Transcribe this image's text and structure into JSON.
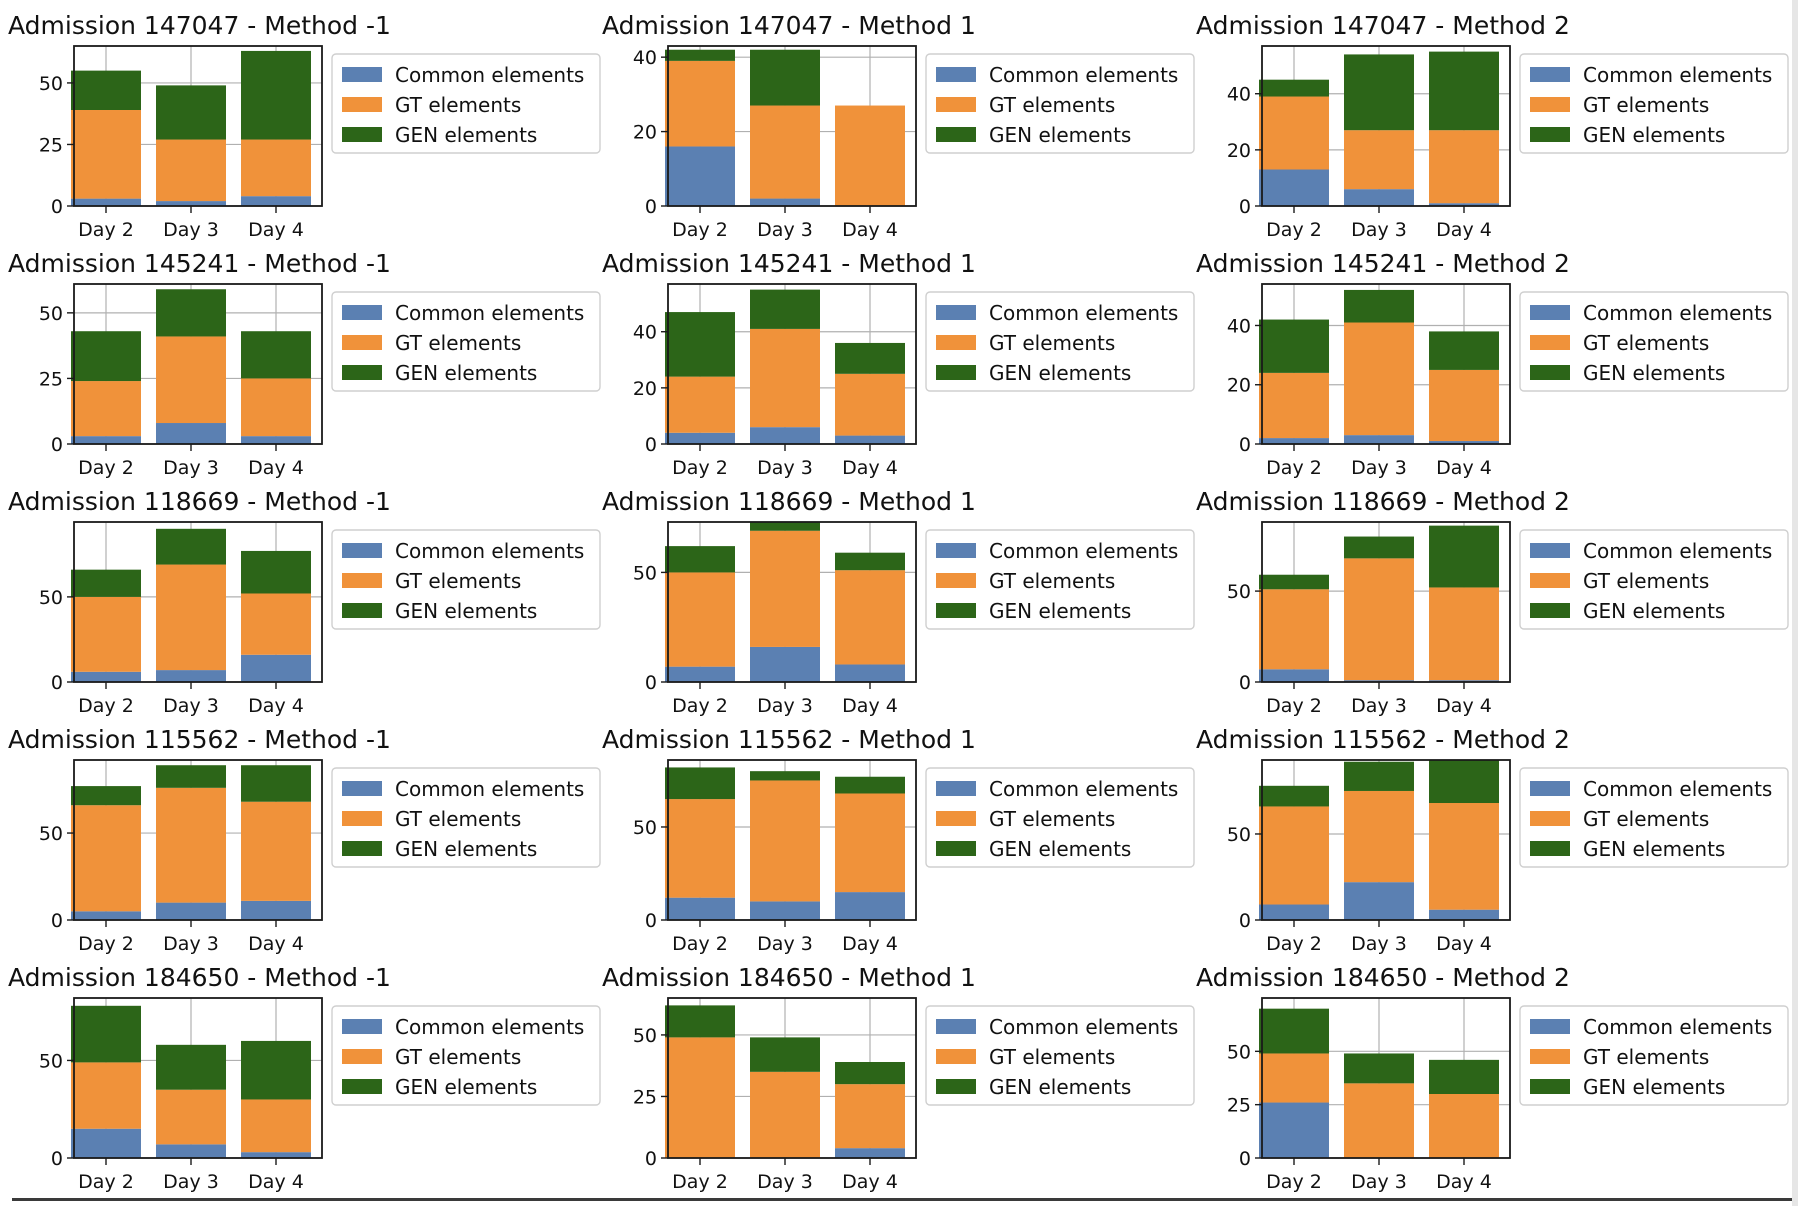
{
  "figure": {
    "day_labels": [
      "Day 2",
      "Day 3",
      "Day 4"
    ],
    "legend": [
      "Common elements",
      "GT elements",
      "GEN elements"
    ],
    "colors": {
      "common": "#5b80b2",
      "gt": "#f0923a",
      "gen": "#2c6518"
    }
  },
  "chart_data": [
    {
      "type": "bar",
      "stacked": true,
      "title": "Admission 147047 - Method -1",
      "categories": [
        "Day 2",
        "Day 3",
        "Day 4"
      ],
      "series": [
        {
          "name": "Common elements",
          "values": [
            3,
            2,
            4
          ]
        },
        {
          "name": "GT elements",
          "values": [
            36,
            25,
            23
          ]
        },
        {
          "name": "GEN elements",
          "values": [
            16,
            22,
            36
          ]
        }
      ],
      "ylim": [
        0,
        65
      ],
      "yticks": [
        0,
        25,
        50
      ]
    },
    {
      "type": "bar",
      "stacked": true,
      "title": "Admission 147047 - Method 1",
      "categories": [
        "Day 2",
        "Day 3",
        "Day 4"
      ],
      "series": [
        {
          "name": "Common elements",
          "values": [
            16,
            2,
            0
          ]
        },
        {
          "name": "GT elements",
          "values": [
            23,
            25,
            27
          ]
        },
        {
          "name": "GEN elements",
          "values": [
            3,
            15,
            0
          ]
        }
      ],
      "ylim": [
        0,
        43
      ],
      "yticks": [
        0,
        20,
        40
      ]
    },
    {
      "type": "bar",
      "stacked": true,
      "title": "Admission 147047 - Method 2",
      "categories": [
        "Day 2",
        "Day 3",
        "Day 4"
      ],
      "series": [
        {
          "name": "Common elements",
          "values": [
            13,
            6,
            1
          ]
        },
        {
          "name": "GT elements",
          "values": [
            26,
            21,
            26
          ]
        },
        {
          "name": "GEN elements",
          "values": [
            6,
            27,
            28
          ]
        }
      ],
      "ylim": [
        0,
        57
      ],
      "yticks": [
        0,
        20,
        40
      ]
    },
    {
      "type": "bar",
      "stacked": true,
      "title": "Admission 145241 - Method -1",
      "categories": [
        "Day 2",
        "Day 3",
        "Day 4"
      ],
      "series": [
        {
          "name": "Common elements",
          "values": [
            3,
            8,
            3
          ]
        },
        {
          "name": "GT elements",
          "values": [
            21,
            33,
            22
          ]
        },
        {
          "name": "GEN elements",
          "values": [
            19,
            18,
            18
          ]
        }
      ],
      "ylim": [
        0,
        61
      ],
      "yticks": [
        0,
        25,
        50
      ]
    },
    {
      "type": "bar",
      "stacked": true,
      "title": "Admission 145241 - Method 1",
      "categories": [
        "Day 2",
        "Day 3",
        "Day 4"
      ],
      "series": [
        {
          "name": "Common elements",
          "values": [
            4,
            6,
            3
          ]
        },
        {
          "name": "GT elements",
          "values": [
            20,
            35,
            22
          ]
        },
        {
          "name": "GEN elements",
          "values": [
            23,
            14,
            11
          ]
        }
      ],
      "ylim": [
        0,
        57
      ],
      "yticks": [
        0,
        20,
        40
      ]
    },
    {
      "type": "bar",
      "stacked": true,
      "title": "Admission 145241 - Method 2",
      "categories": [
        "Day 2",
        "Day 3",
        "Day 4"
      ],
      "series": [
        {
          "name": "Common elements",
          "values": [
            2,
            3,
            1
          ]
        },
        {
          "name": "GT elements",
          "values": [
            22,
            38,
            24
          ]
        },
        {
          "name": "GEN elements",
          "values": [
            18,
            11,
            13
          ]
        }
      ],
      "ylim": [
        0,
        54
      ],
      "yticks": [
        0,
        20,
        40
      ]
    },
    {
      "type": "bar",
      "stacked": true,
      "title": "Admission 118669 - Method -1",
      "categories": [
        "Day 2",
        "Day 3",
        "Day 4"
      ],
      "series": [
        {
          "name": "Common elements",
          "values": [
            6,
            7,
            16
          ]
        },
        {
          "name": "GT elements",
          "values": [
            44,
            62,
            36
          ]
        },
        {
          "name": "GEN elements",
          "values": [
            16,
            21,
            25
          ]
        }
      ],
      "ylim": [
        0,
        94
      ],
      "yticks": [
        0,
        50
      ]
    },
    {
      "type": "bar",
      "stacked": true,
      "title": "Admission 118669 - Method 1",
      "categories": [
        "Day 2",
        "Day 3",
        "Day 4"
      ],
      "series": [
        {
          "name": "Common elements",
          "values": [
            7,
            16,
            8
          ]
        },
        {
          "name": "GT elements",
          "values": [
            43,
            53,
            43
          ]
        },
        {
          "name": "GEN elements",
          "values": [
            12,
            4,
            8
          ]
        }
      ],
      "ylim": [
        0,
        73
      ],
      "yticks": [
        0,
        50
      ]
    },
    {
      "type": "bar",
      "stacked": true,
      "title": "Admission 118669 - Method 2",
      "categories": [
        "Day 2",
        "Day 3",
        "Day 4"
      ],
      "series": [
        {
          "name": "Common elements",
          "values": [
            7,
            1,
            1
          ]
        },
        {
          "name": "GT elements",
          "values": [
            44,
            67,
            51
          ]
        },
        {
          "name": "GEN elements",
          "values": [
            8,
            12,
            34
          ]
        }
      ],
      "ylim": [
        0,
        88
      ],
      "yticks": [
        0,
        50
      ]
    },
    {
      "type": "bar",
      "stacked": true,
      "title": "Admission 115562 - Method -1",
      "categories": [
        "Day 2",
        "Day 3",
        "Day 4"
      ],
      "series": [
        {
          "name": "Common elements",
          "values": [
            5,
            10,
            11
          ]
        },
        {
          "name": "GT elements",
          "values": [
            61,
            66,
            57
          ]
        },
        {
          "name": "GEN elements",
          "values": [
            11,
            13,
            21
          ]
        }
      ],
      "ylim": [
        0,
        92
      ],
      "yticks": [
        0,
        50
      ]
    },
    {
      "type": "bar",
      "stacked": true,
      "title": "Admission 115562 - Method 1",
      "categories": [
        "Day 2",
        "Day 3",
        "Day 4"
      ],
      "series": [
        {
          "name": "Common elements",
          "values": [
            12,
            10,
            15
          ]
        },
        {
          "name": "GT elements",
          "values": [
            53,
            65,
            53
          ]
        },
        {
          "name": "GEN elements",
          "values": [
            17,
            5,
            9
          ]
        }
      ],
      "ylim": [
        0,
        86
      ],
      "yticks": [
        0,
        50
      ]
    },
    {
      "type": "bar",
      "stacked": true,
      "title": "Admission 115562 - Method 2",
      "categories": [
        "Day 2",
        "Day 3",
        "Day 4"
      ],
      "series": [
        {
          "name": "Common elements",
          "values": [
            9,
            22,
            6
          ]
        },
        {
          "name": "GT elements",
          "values": [
            57,
            53,
            62
          ]
        },
        {
          "name": "GEN elements",
          "values": [
            12,
            17,
            25
          ]
        }
      ],
      "ylim": [
        0,
        93
      ],
      "yticks": [
        0,
        50
      ]
    },
    {
      "type": "bar",
      "stacked": true,
      "title": "Admission 184650 - Method -1",
      "categories": [
        "Day 2",
        "Day 3",
        "Day 4"
      ],
      "series": [
        {
          "name": "Common elements",
          "values": [
            15,
            7,
            3
          ]
        },
        {
          "name": "GT elements",
          "values": [
            34,
            28,
            27
          ]
        },
        {
          "name": "GEN elements",
          "values": [
            29,
            23,
            30
          ]
        }
      ],
      "ylim": [
        0,
        82
      ],
      "yticks": [
        0,
        50
      ]
    },
    {
      "type": "bar",
      "stacked": true,
      "title": "Admission 184650 - Method 1",
      "categories": [
        "Day 2",
        "Day 3",
        "Day 4"
      ],
      "series": [
        {
          "name": "Common elements",
          "values": [
            0,
            0,
            4
          ]
        },
        {
          "name": "GT elements",
          "values": [
            49,
            35,
            26
          ]
        },
        {
          "name": "GEN elements",
          "values": [
            13,
            14,
            9
          ]
        }
      ],
      "ylim": [
        0,
        65
      ],
      "yticks": [
        0,
        25,
        50
      ]
    },
    {
      "type": "bar",
      "stacked": true,
      "title": "Admission 184650 - Method 2",
      "categories": [
        "Day 2",
        "Day 3",
        "Day 4"
      ],
      "series": [
        {
          "name": "Common elements",
          "values": [
            26,
            0,
            0
          ]
        },
        {
          "name": "GT elements",
          "values": [
            23,
            35,
            30
          ]
        },
        {
          "name": "GEN elements",
          "values": [
            21,
            14,
            16
          ]
        }
      ],
      "ylim": [
        0,
        75
      ],
      "yticks": [
        0,
        25,
        50
      ]
    }
  ]
}
